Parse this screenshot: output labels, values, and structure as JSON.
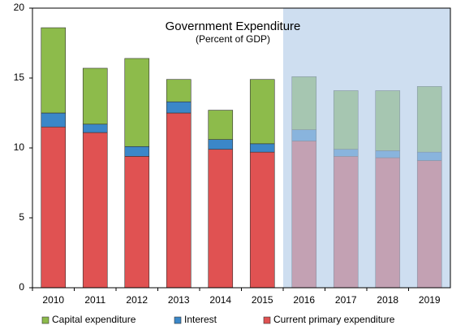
{
  "chart_data": {
    "type": "stacked_bar",
    "title": "Government Expenditure",
    "subtitle": "(Percent of GDP)",
    "categories": [
      "2010",
      "2011",
      "2012",
      "2013",
      "2014",
      "2015",
      "2016",
      "2017",
      "2018",
      "2019"
    ],
    "series": [
      {
        "name": "Current primary expenditure",
        "color": "#e05252",
        "values": [
          11.5,
          11.1,
          9.4,
          12.5,
          9.9,
          9.7,
          10.5,
          9.4,
          9.3,
          9.1
        ]
      },
      {
        "name": "Interest",
        "color": "#3b87c8",
        "values": [
          1.0,
          0.6,
          0.7,
          0.8,
          0.7,
          0.6,
          0.8,
          0.5,
          0.5,
          0.6
        ]
      },
      {
        "name": "Capital expenditure",
        "color": "#8dbb4b",
        "values": [
          6.1,
          4.0,
          6.3,
          1.6,
          2.1,
          4.6,
          3.8,
          4.2,
          4.3,
          4.7
        ]
      }
    ],
    "legend_order": [
      2,
      1,
      0
    ],
    "ylim": [
      0,
      20
    ],
    "yticks": [
      0,
      5,
      10,
      15,
      20
    ],
    "shaded": {
      "from": "2016",
      "color": "#b3cde8"
    }
  }
}
